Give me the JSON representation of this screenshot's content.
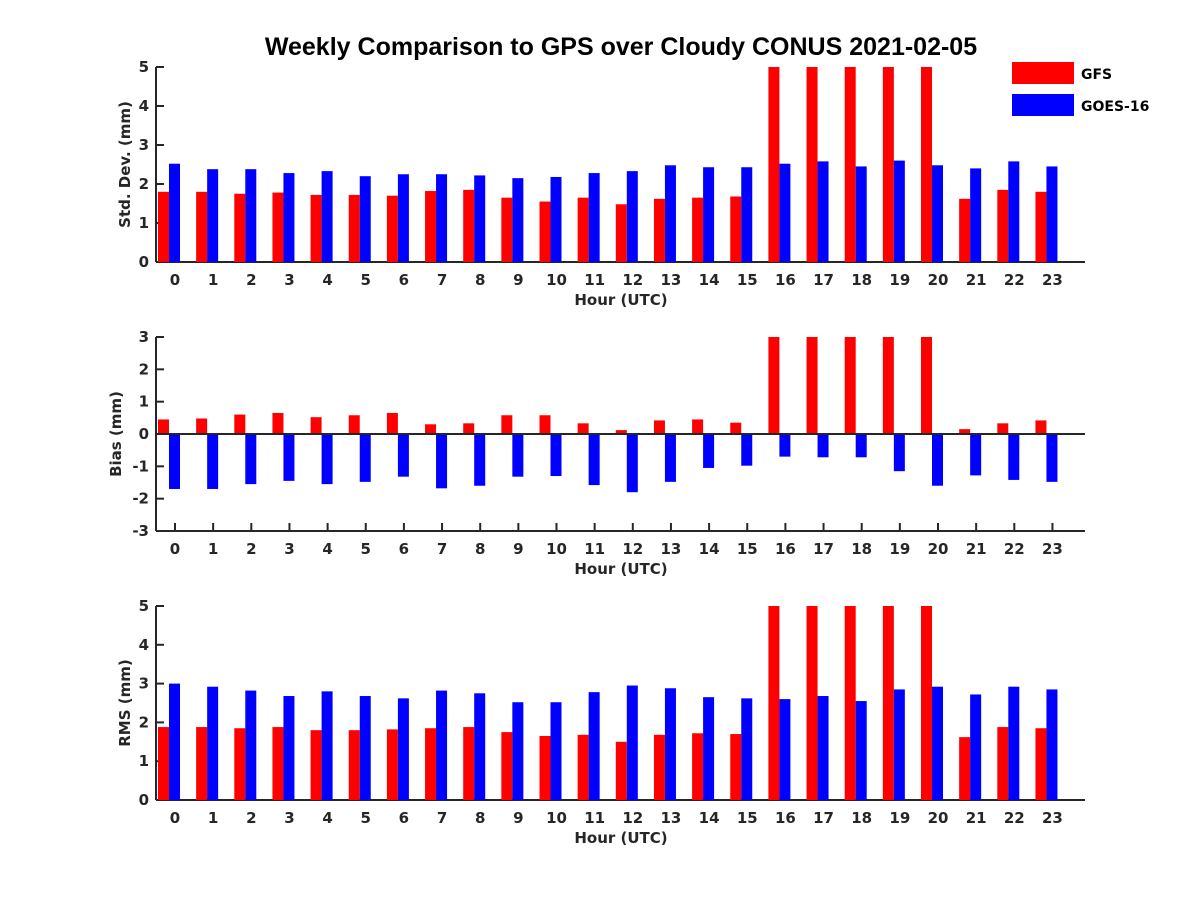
{
  "figure": {
    "title": "Weekly Comparison to GPS over Cloudy CONUS 2021-02-05"
  },
  "legend": {
    "entries": [
      {
        "name": "GFS",
        "color": "#ff0000"
      },
      {
        "name": "GOES-16",
        "color": "#0000ff"
      }
    ],
    "placement": "top-right"
  },
  "chart_data": [
    {
      "type": "bar",
      "xlabel": "Hour (UTC)",
      "ylabel": "Std. Dev. (mm)",
      "ylim": [
        0,
        5
      ],
      "yticks": [
        0,
        1,
        2,
        3,
        4,
        5
      ],
      "categories": [
        "0",
        "1",
        "2",
        "3",
        "4",
        "5",
        "6",
        "7",
        "8",
        "9",
        "10",
        "11",
        "12",
        "13",
        "14",
        "15",
        "16",
        "17",
        "18",
        "19",
        "20",
        "21",
        "22",
        "23"
      ],
      "series": [
        {
          "name": "GFS",
          "color": "#ff0000",
          "values": [
            1.8,
            1.8,
            1.75,
            1.78,
            1.72,
            1.72,
            1.7,
            1.82,
            1.85,
            1.65,
            1.55,
            1.65,
            1.48,
            1.62,
            1.65,
            1.68,
            5,
            5,
            5,
            5,
            5,
            1.62,
            1.85,
            1.8
          ]
        },
        {
          "name": "GOES-16",
          "color": "#0000ff",
          "values": [
            2.52,
            2.38,
            2.38,
            2.28,
            2.33,
            2.2,
            2.25,
            2.25,
            2.22,
            2.15,
            2.18,
            2.28,
            2.33,
            2.48,
            2.43,
            2.43,
            2.52,
            2.58,
            2.45,
            2.6,
            2.48,
            2.4,
            2.58,
            2.45
          ]
        }
      ]
    },
    {
      "type": "bar",
      "xlabel": "Hour (UTC)",
      "ylabel": "Bias (mm)",
      "ylim": [
        -3,
        3
      ],
      "yticks": [
        -3,
        -2,
        -1,
        0,
        1,
        2,
        3
      ],
      "zero_line": true,
      "categories": [
        "0",
        "1",
        "2",
        "3",
        "4",
        "5",
        "6",
        "7",
        "8",
        "9",
        "10",
        "11",
        "12",
        "13",
        "14",
        "15",
        "16",
        "17",
        "18",
        "19",
        "20",
        "21",
        "22",
        "23"
      ],
      "series": [
        {
          "name": "GFS",
          "color": "#ff0000",
          "values": [
            0.45,
            0.48,
            0.6,
            0.65,
            0.52,
            0.58,
            0.65,
            0.3,
            0.33,
            0.58,
            0.58,
            0.33,
            0.12,
            0.42,
            0.45,
            0.35,
            3,
            3,
            3,
            3,
            3,
            0.15,
            0.33,
            0.42
          ]
        },
        {
          "name": "GOES-16",
          "color": "#0000ff",
          "values": [
            -1.7,
            -1.7,
            -1.55,
            -1.45,
            -1.55,
            -1.48,
            -1.32,
            -1.68,
            -1.6,
            -1.32,
            -1.3,
            -1.58,
            -1.8,
            -1.48,
            -1.05,
            -0.98,
            -0.7,
            -0.72,
            -0.72,
            -1.15,
            -1.6,
            -1.28,
            -1.42,
            -1.48
          ]
        }
      ]
    },
    {
      "type": "bar",
      "xlabel": "Hour (UTC)",
      "ylabel": "RMS (mm)",
      "ylim": [
        0,
        5
      ],
      "yticks": [
        0,
        1,
        2,
        3,
        4,
        5
      ],
      "categories": [
        "0",
        "1",
        "2",
        "3",
        "4",
        "5",
        "6",
        "7",
        "8",
        "9",
        "10",
        "11",
        "12",
        "13",
        "14",
        "15",
        "16",
        "17",
        "18",
        "19",
        "20",
        "21",
        "22",
        "23"
      ],
      "series": [
        {
          "name": "GFS",
          "color": "#ff0000",
          "values": [
            1.88,
            1.88,
            1.85,
            1.88,
            1.8,
            1.8,
            1.82,
            1.85,
            1.88,
            1.75,
            1.65,
            1.68,
            1.5,
            1.68,
            1.72,
            1.7,
            5,
            5,
            5,
            5,
            5,
            1.62,
            1.88,
            1.85
          ]
        },
        {
          "name": "GOES-16",
          "color": "#0000ff",
          "values": [
            3.0,
            2.92,
            2.82,
            2.68,
            2.8,
            2.68,
            2.62,
            2.82,
            2.75,
            2.52,
            2.52,
            2.78,
            2.95,
            2.88,
            2.65,
            2.62,
            2.6,
            2.68,
            2.55,
            2.85,
            2.92,
            2.72,
            2.92,
            2.85
          ]
        }
      ]
    }
  ]
}
